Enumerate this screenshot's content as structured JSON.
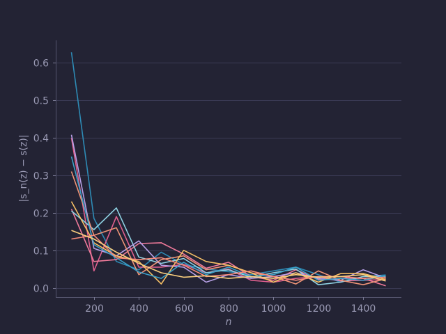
{
  "chart_data": {
    "type": "line",
    "xlabel": "n",
    "ylabel": "|s_n(z) − s(z)|",
    "xlim": [
      30,
      1570
    ],
    "ylim": [
      -0.025,
      0.66
    ],
    "xticks": [
      200,
      400,
      600,
      800,
      1000,
      1200,
      1400
    ],
    "yticks": [
      0.0,
      0.1,
      0.2,
      0.3,
      0.4,
      0.5,
      0.6
    ],
    "ytick_labels": [
      "0.0",
      "0.1",
      "0.2",
      "0.3",
      "0.4",
      "0.5",
      "0.6"
    ],
    "grid": true,
    "legend": false,
    "x": [
      100,
      200,
      300,
      400,
      500,
      600,
      700,
      800,
      900,
      1000,
      1100,
      1200,
      1300,
      1400,
      1500
    ],
    "series": [
      {
        "color": "#2e8bb5",
        "values": [
          0.628,
          0.185,
          0.07,
          0.048,
          0.095,
          0.062,
          0.05,
          0.043,
          0.035,
          0.045,
          0.055,
          0.035,
          0.015,
          0.03,
          0.034
        ]
      },
      {
        "color": "#e0608e",
        "values": [
          0.4,
          0.045,
          0.19,
          0.055,
          0.055,
          0.062,
          0.04,
          0.05,
          0.02,
          0.015,
          0.025,
          0.03,
          0.018,
          0.02,
          0.022
        ]
      },
      {
        "color": "#f07a9a",
        "values": [
          0.21,
          0.07,
          0.075,
          0.118,
          0.12,
          0.09,
          0.052,
          0.068,
          0.03,
          0.02,
          0.048,
          0.022,
          0.025,
          0.025,
          0.005
        ]
      },
      {
        "color": "#8fd2e3",
        "values": [
          0.205,
          0.155,
          0.213,
          0.082,
          0.065,
          0.078,
          0.04,
          0.048,
          0.028,
          0.04,
          0.05,
          0.008,
          0.015,
          0.03,
          0.03
        ]
      },
      {
        "color": "#b7a0e6",
        "values": [
          0.408,
          0.105,
          0.085,
          0.125,
          0.06,
          0.055,
          0.015,
          0.035,
          0.025,
          0.03,
          0.04,
          0.025,
          0.02,
          0.048,
          0.026
        ]
      },
      {
        "color": "#ef9477",
        "values": [
          0.31,
          0.14,
          0.16,
          0.035,
          0.075,
          0.085,
          0.048,
          0.06,
          0.04,
          0.03,
          0.01,
          0.045,
          0.02,
          0.008,
          0.024
        ]
      },
      {
        "color": "#f6c066",
        "values": [
          0.23,
          0.12,
          0.085,
          0.07,
          0.01,
          0.1,
          0.07,
          0.06,
          0.04,
          0.015,
          0.04,
          0.015,
          0.038,
          0.038,
          0.022
        ]
      },
      {
        "color": "#3aa0c8",
        "values": [
          0.35,
          0.115,
          0.08,
          0.042,
          0.025,
          0.068,
          0.035,
          0.055,
          0.03,
          0.035,
          0.055,
          0.02,
          0.025,
          0.02,
          0.032
        ]
      },
      {
        "color": "#f58a7a",
        "values": [
          0.13,
          0.14,
          0.08,
          0.075,
          0.08,
          0.06,
          0.03,
          0.035,
          0.045,
          0.03,
          0.02,
          0.03,
          0.03,
          0.025,
          0.028
        ]
      },
      {
        "color": "#fbcf7e",
        "values": [
          0.153,
          0.13,
          0.095,
          0.065,
          0.04,
          0.028,
          0.032,
          0.025,
          0.03,
          0.025,
          0.035,
          0.028,
          0.03,
          0.035,
          0.018
        ]
      }
    ]
  }
}
